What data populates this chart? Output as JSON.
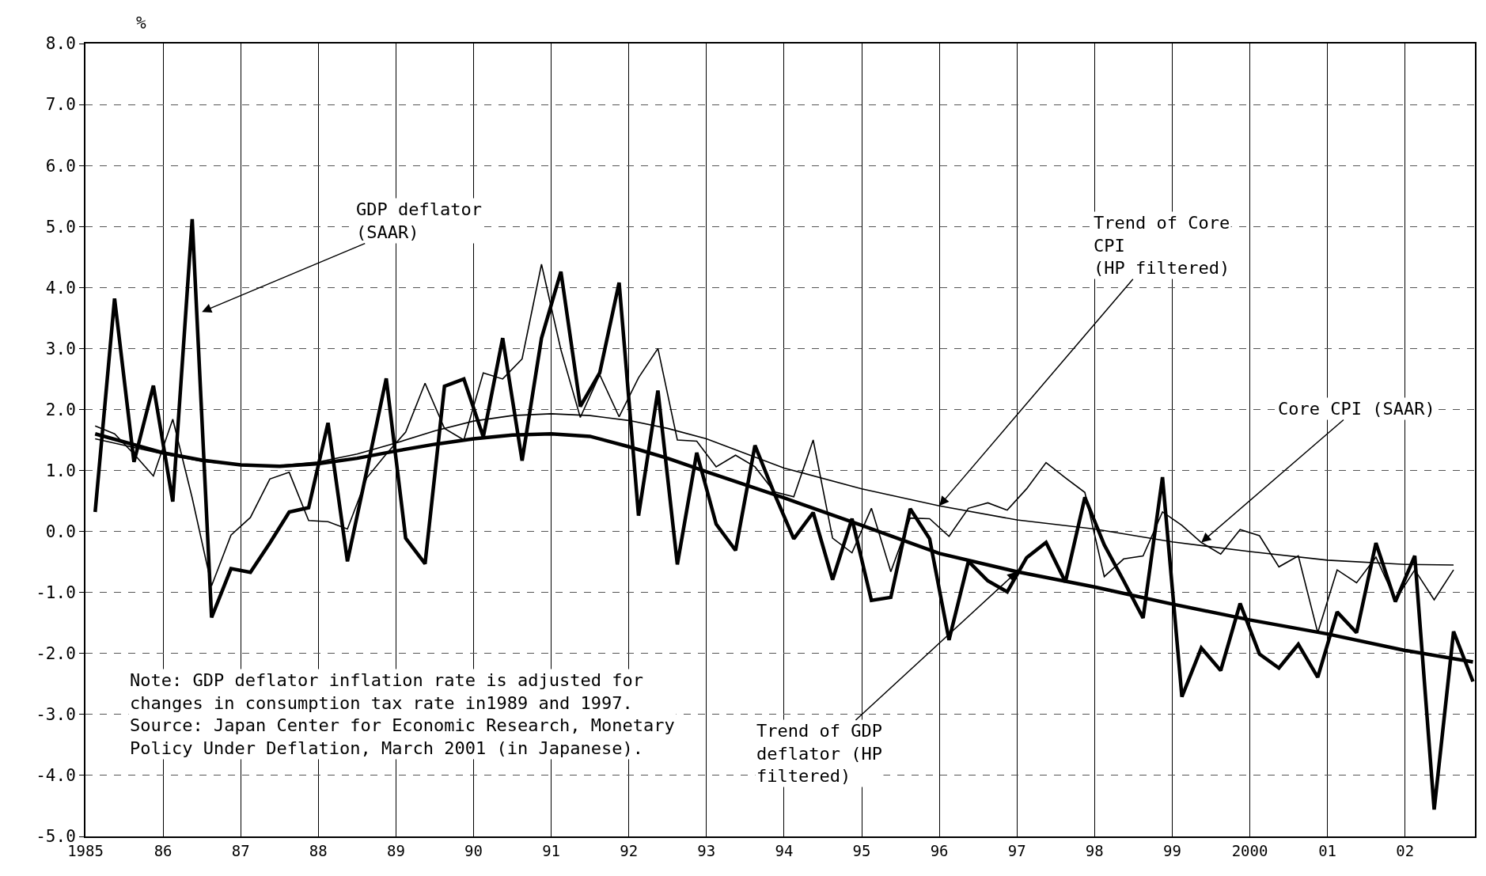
{
  "chart_data": {
    "type": "line",
    "ylabel": "%",
    "grid": true,
    "marker": "none",
    "line_style": "solid",
    "xlim": [
      1985,
      2002.9
    ],
    "ylim": [
      -5,
      8
    ],
    "xticks": [
      {
        "value": 1985,
        "label": "1985"
      },
      {
        "value": 1986,
        "label": "86"
      },
      {
        "value": 1987,
        "label": "87"
      },
      {
        "value": 1988,
        "label": "88"
      },
      {
        "value": 1989,
        "label": "89"
      },
      {
        "value": 1990,
        "label": "90"
      },
      {
        "value": 1991,
        "label": "91"
      },
      {
        "value": 1992,
        "label": "92"
      },
      {
        "value": 1993,
        "label": "93"
      },
      {
        "value": 1994,
        "label": "94"
      },
      {
        "value": 1995,
        "label": "95"
      },
      {
        "value": 1996,
        "label": "96"
      },
      {
        "value": 1997,
        "label": "97"
      },
      {
        "value": 1998,
        "label": "98"
      },
      {
        "value": 1999,
        "label": "99"
      },
      {
        "value": 2000,
        "label": "2000"
      },
      {
        "value": 2001,
        "label": "01"
      },
      {
        "value": 2002,
        "label": "02"
      }
    ],
    "yticks": [
      {
        "value": -5,
        "label": "-5.0"
      },
      {
        "value": -4,
        "label": "-4.0"
      },
      {
        "value": -3,
        "label": "-3.0"
      },
      {
        "value": -2,
        "label": "-2.0"
      },
      {
        "value": -1,
        "label": "-1.0"
      },
      {
        "value": 0,
        "label": "0.0"
      },
      {
        "value": 1,
        "label": "1.0"
      },
      {
        "value": 2,
        "label": "2.0"
      },
      {
        "value": 3,
        "label": "3.0"
      },
      {
        "value": 4,
        "label": "4.0"
      },
      {
        "value": 5,
        "label": "5.0"
      },
      {
        "value": 6,
        "label": "6.0"
      },
      {
        "value": 7,
        "label": "7.0"
      },
      {
        "value": 8,
        "label": "8.0"
      }
    ],
    "x": [
      1985.125,
      1985.375,
      1985.625,
      1985.875,
      1986.125,
      1986.375,
      1986.625,
      1986.875,
      1987.125,
      1987.375,
      1987.625,
      1987.875,
      1988.125,
      1988.375,
      1988.625,
      1988.875,
      1989.125,
      1989.375,
      1989.625,
      1989.875,
      1990.125,
      1990.375,
      1990.625,
      1990.875,
      1991.125,
      1991.375,
      1991.625,
      1991.875,
      1992.125,
      1992.375,
      1992.625,
      1992.875,
      1993.125,
      1993.375,
      1993.625,
      1993.875,
      1994.125,
      1994.375,
      1994.625,
      1994.875,
      1995.125,
      1995.375,
      1995.625,
      1995.875,
      1996.125,
      1996.375,
      1996.625,
      1996.875,
      1997.125,
      1997.375,
      1997.625,
      1997.875,
      1998.125,
      1998.375,
      1998.625,
      1998.875,
      1999.125,
      1999.375,
      1999.625,
      1999.875,
      2000.125,
      2000.375,
      2000.625,
      2000.875,
      2001.125,
      2001.375,
      2001.625,
      2001.875,
      2002.125,
      2002.375,
      2002.625,
      2002.875
    ],
    "series": [
      {
        "color": "#000000",
        "values": [
          0.32,
          3.82,
          1.14,
          2.39,
          0.49,
          5.12,
          -1.41,
          -0.61,
          -0.67,
          -0.19,
          0.32,
          0.39,
          1.78,
          -0.49,
          1.0,
          2.51,
          -0.11,
          -0.53,
          2.38,
          2.5,
          1.55,
          3.17,
          1.16,
          3.17,
          4.26,
          2.05,
          2.6,
          4.08,
          0.26,
          2.31,
          -0.54,
          1.29,
          0.12,
          -0.31,
          1.41,
          0.62,
          -0.12,
          0.31,
          -0.79,
          0.21,
          -1.13,
          -1.08,
          0.37,
          -0.12,
          -1.78,
          -0.49,
          -0.81,
          -0.99,
          -0.43,
          -0.18,
          -0.83,
          0.56,
          -0.22,
          -0.81,
          -1.42,
          0.89,
          -2.71,
          -1.91,
          -2.28,
          -1.18,
          -2.01,
          -2.24,
          -1.85,
          -2.39,
          -1.32,
          -1.66,
          -0.19,
          -1.15,
          -0.4,
          -4.56,
          -1.64,
          -2.46
        ]
      },
      {
        "color": "#000000",
        "values": [
          1.73,
          1.6,
          1.27,
          0.91,
          1.84,
          0.55,
          -0.89,
          -0.06,
          0.23,
          0.86,
          0.97,
          0.18,
          0.16,
          0.04,
          0.88,
          1.27,
          1.63,
          2.43,
          1.69,
          1.5,
          2.6,
          2.5,
          2.83,
          4.38,
          2.98,
          1.87,
          2.57,
          1.88,
          2.52,
          3.0,
          1.5,
          1.48,
          1.06,
          1.25,
          1.06,
          0.65,
          0.57,
          1.5,
          -0.11,
          -0.35,
          0.38,
          -0.66,
          0.22,
          0.21,
          -0.08,
          0.38,
          0.47,
          0.35,
          0.7,
          1.13,
          0.88,
          0.64,
          -0.74,
          -0.45,
          -0.4,
          0.32,
          0.1,
          -0.18,
          -0.37,
          0.03,
          -0.07,
          -0.58,
          -0.4,
          -1.66,
          -0.63,
          -0.84,
          -0.42,
          -1.12,
          -0.63,
          -1.12,
          -0.63,
          null
        ]
      },
      {
        "color": "#000000",
        "x": [
          1985.125,
          1986,
          1986.5,
          1987,
          1987.5,
          1988,
          1988.5,
          1989,
          1989.5,
          1990,
          1990.5,
          1991,
          1991.5,
          1992,
          1992.5,
          1993,
          1994,
          1995,
          1996,
          1997,
          1998,
          1999,
          2000,
          2001,
          2002,
          2002.625
        ],
        "values": [
          1.52,
          1.27,
          1.15,
          1.09,
          1.08,
          1.14,
          1.27,
          1.45,
          1.65,
          1.81,
          1.9,
          1.93,
          1.9,
          1.82,
          1.69,
          1.52,
          1.04,
          0.7,
          0.42,
          0.19,
          0.04,
          -0.17,
          -0.33,
          -0.47,
          -0.54,
          -0.55
        ]
      },
      {
        "color": "#000000",
        "x": [
          1985.125,
          1986,
          1986.5,
          1987,
          1987.5,
          1988,
          1988.5,
          1989,
          1989.5,
          1990,
          1990.5,
          1991,
          1991.5,
          1992,
          1992.5,
          1993,
          1994,
          1995,
          1996,
          1997,
          1998,
          1999,
          2000,
          2001,
          2002,
          2002.875
        ],
        "values": [
          1.6,
          1.29,
          1.17,
          1.09,
          1.07,
          1.11,
          1.2,
          1.32,
          1.43,
          1.52,
          1.58,
          1.6,
          1.56,
          1.39,
          1.2,
          0.98,
          0.55,
          0.1,
          -0.36,
          -0.66,
          -0.91,
          -1.19,
          -1.45,
          -1.68,
          -1.95,
          -2.14
        ]
      }
    ],
    "annotations": [
      {
        "text": "GDP deflator\n(SAAR)",
        "x": 1986.5,
        "y": 3.6
      },
      {
        "text": "Trend of Core\nCPI\n(HP filtered)",
        "x": 1996.0,
        "y": 0.42
      },
      {
        "text": "Core CPI (SAAR)",
        "x": 1999.375,
        "y": -0.18
      },
      {
        "text": "Trend of GDP\ndeflator (HP\nfiltered)",
        "x": 1997,
        "y": -0.66
      },
      "Note: GDP deflator inflation rate is adjusted for\nchanges in consumption tax rate in1989 and 1997.\nSource: Japan Center for Economic Research, Monetary\nPolicy Under Deflation, March 2001 (in Japanese)."
    ]
  }
}
